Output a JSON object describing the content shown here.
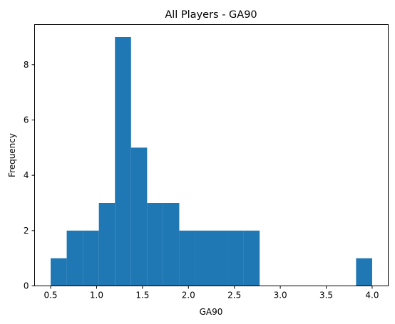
{
  "chart_data": {
    "type": "bar",
    "title": "All Players - GA90",
    "xlabel": "GA90",
    "ylabel": "Frequency",
    "xlim": [
      0.325,
      4.175
    ],
    "ylim": [
      0,
      9.45
    ],
    "xticks": [
      "0.5",
      "1.0",
      "1.5",
      "2.0",
      "2.5",
      "3.0",
      "3.5",
      "4.0"
    ],
    "yticks": [
      "0",
      "2",
      "4",
      "6",
      "8"
    ],
    "grid": false,
    "bar_color": "#1f77b4",
    "bin_edges": [
      0.5,
      0.675,
      0.85,
      1.025,
      1.2,
      1.375,
      1.55,
      1.725,
      1.9,
      2.075,
      2.25,
      2.425,
      2.6,
      2.775,
      2.95,
      3.125,
      3.3,
      3.475,
      3.65,
      3.825,
      4.0
    ],
    "values": [
      1,
      2,
      2,
      3,
      9,
      5,
      3,
      3,
      2,
      2,
      2,
      2,
      2,
      0,
      0,
      0,
      0,
      0,
      0,
      1
    ]
  }
}
